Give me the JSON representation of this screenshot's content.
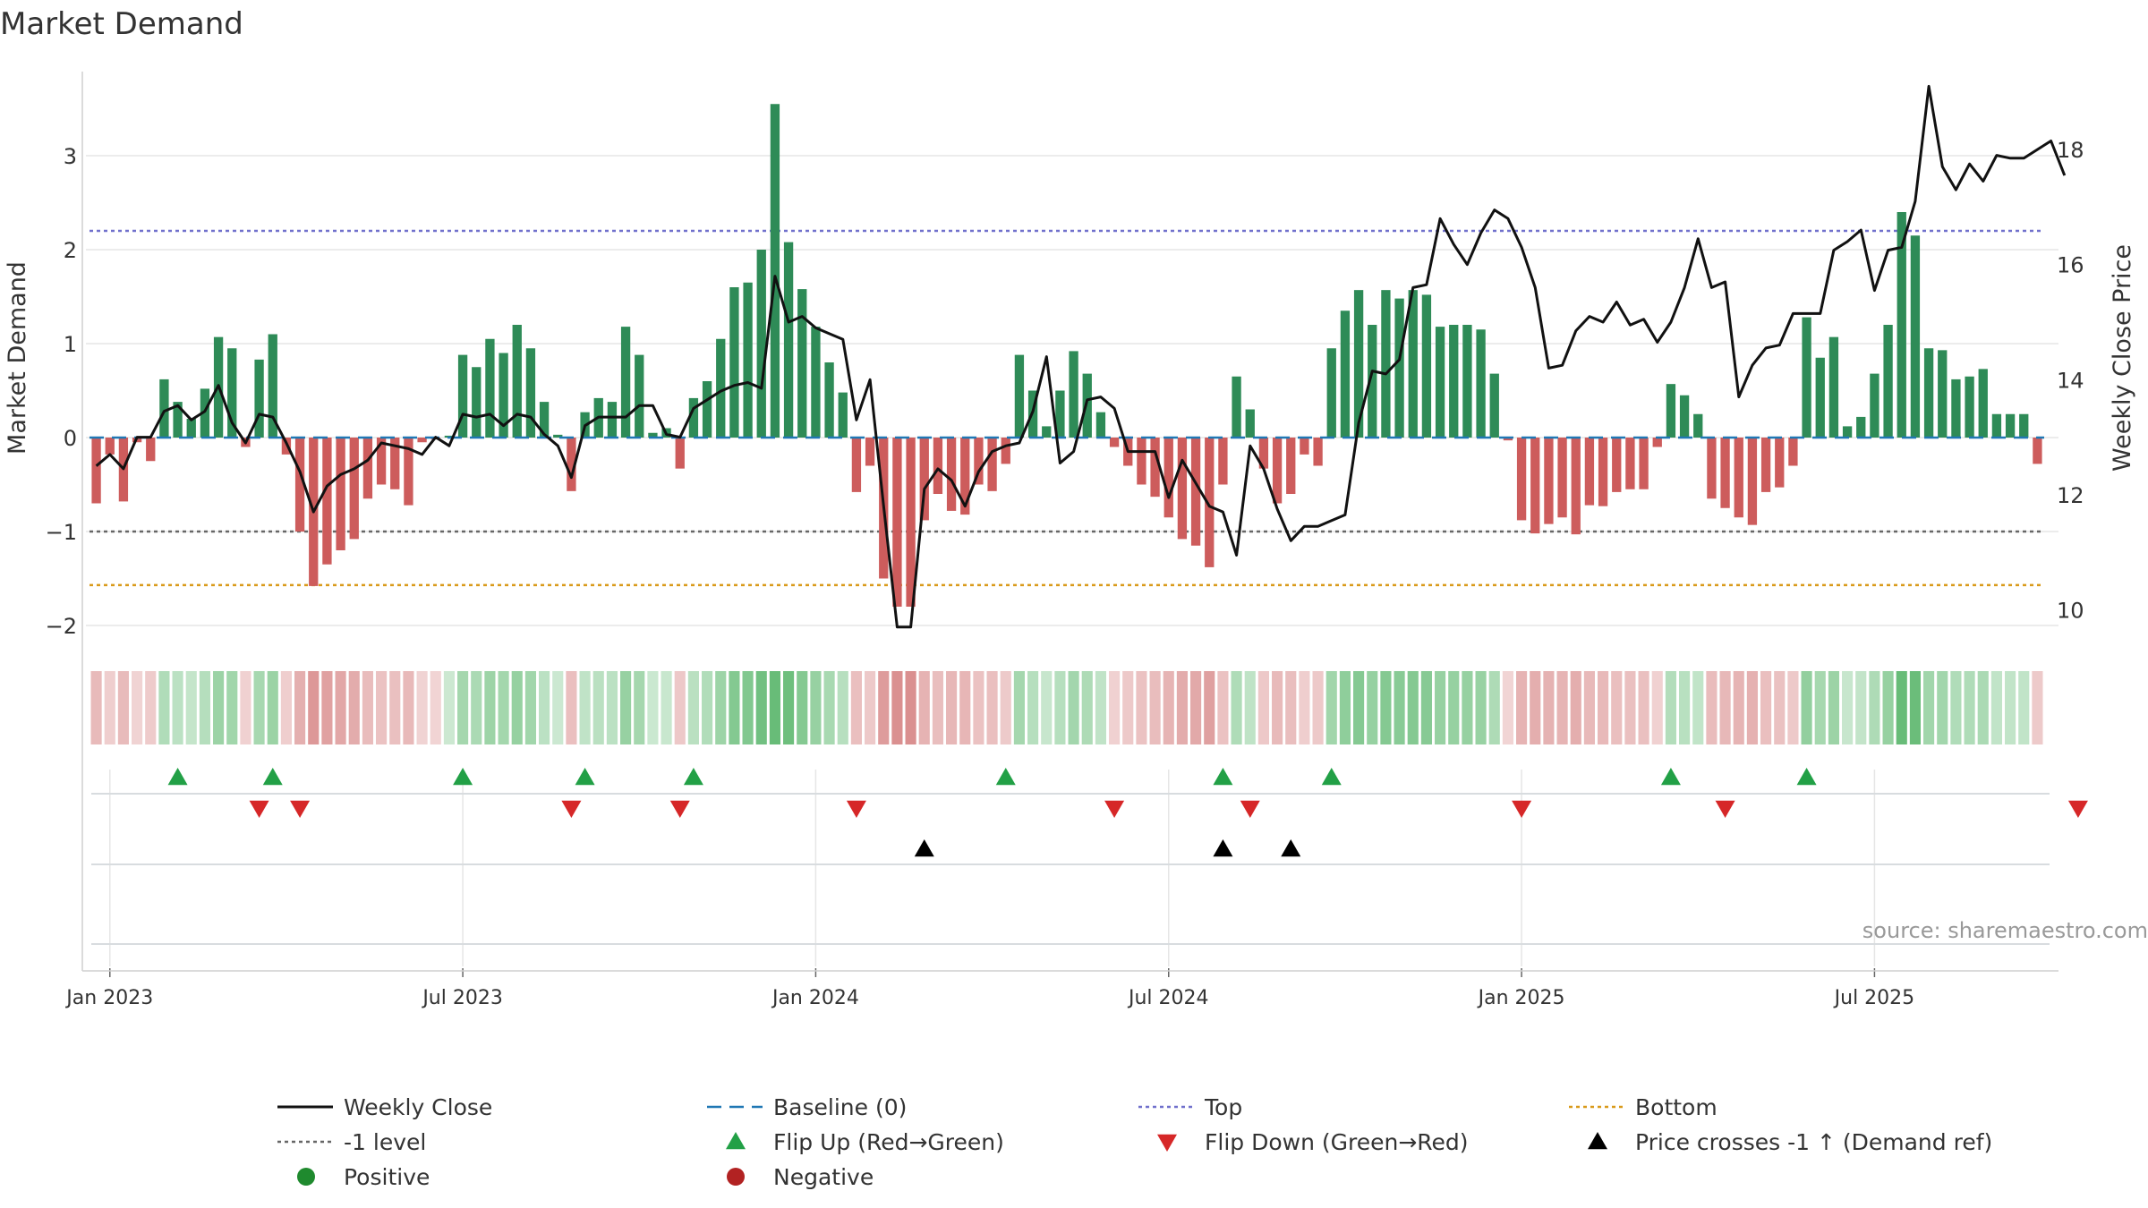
{
  "chart_data": {
    "type": "bar",
    "title": "Market Demand",
    "ylabel_left": "Market Demand",
    "ylabel_right": "Weekly Close Price",
    "source": "source: sharemaestro.com",
    "ylim_left": [
      -2.2,
      3.8
    ],
    "ylim_right": [
      9.4,
      19.2
    ],
    "yticks_left": [
      {
        "v": 3,
        "label": "3"
      },
      {
        "v": 2,
        "label": "2"
      },
      {
        "v": 1,
        "label": "1"
      },
      {
        "v": 0,
        "label": "0"
      },
      {
        "v": -1,
        "label": "−1"
      },
      {
        "v": -2,
        "label": "−2"
      }
    ],
    "yticks_right": [
      {
        "v": 18,
        "label": "18"
      },
      {
        "v": 16,
        "label": "16"
      },
      {
        "v": 14,
        "label": "14"
      },
      {
        "v": 12,
        "label": "12"
      },
      {
        "v": 10,
        "label": "10"
      }
    ],
    "xticks": [
      {
        "week": 1,
        "label": "Jan 2023"
      },
      {
        "week": 27,
        "label": "Jul 2023"
      },
      {
        "week": 53,
        "label": "Jan 2024"
      },
      {
        "week": 79,
        "label": "Jul 2024"
      },
      {
        "week": 105,
        "label": "Jan 2025"
      },
      {
        "week": 131,
        "label": "Jul 2025"
      }
    ],
    "levels": {
      "top": 2.2,
      "minus_one": -1,
      "bottom": -1.57,
      "baseline": 0
    },
    "demand": [
      -0.7,
      -0.18,
      -0.68,
      -0.05,
      -0.25,
      0.62,
      0.38,
      0.2,
      0.52,
      1.07,
      0.95,
      -0.1,
      0.83,
      1.1,
      -0.18,
      -1.0,
      -1.58,
      -1.35,
      -1.2,
      -1.08,
      -0.65,
      -0.5,
      -0.55,
      -0.72,
      -0.05,
      -0.02,
      0.02,
      0.88,
      0.75,
      1.05,
      0.9,
      1.2,
      0.95,
      0.38,
      0.03,
      -0.57,
      0.27,
      0.42,
      0.38,
      1.18,
      0.88,
      0.05,
      0.1,
      -0.33,
      0.42,
      0.6,
      1.05,
      1.6,
      1.65,
      2.0,
      3.55,
      2.08,
      1.58,
      1.18,
      0.8,
      0.48,
      -0.58,
      -0.3,
      -1.5,
      -1.8,
      -1.8,
      -0.88,
      -0.6,
      -0.78,
      -0.82,
      -0.5,
      -0.57,
      -0.28,
      0.88,
      0.5,
      0.12,
      0.5,
      0.92,
      0.68,
      0.27,
      -0.1,
      -0.3,
      -0.5,
      -0.63,
      -0.85,
      -1.08,
      -1.15,
      -1.38,
      -0.5,
      0.65,
      0.3,
      -0.33,
      -0.7,
      -0.6,
      -0.18,
      -0.3,
      0.95,
      1.35,
      1.57,
      1.2,
      1.57,
      1.48,
      1.57,
      1.52,
      1.18,
      1.2,
      1.2,
      1.15,
      0.68,
      -0.03,
      -0.88,
      -1.02,
      -0.92,
      -0.85,
      -1.03,
      -0.72,
      -0.73,
      -0.58,
      -0.55,
      -0.55,
      -0.1,
      0.57,
      0.45,
      0.25,
      -0.65,
      -0.75,
      -0.85,
      -0.93,
      -0.58,
      -0.53,
      -0.3,
      1.28,
      0.85,
      1.07,
      0.12,
      0.22,
      0.68,
      1.2,
      2.4,
      2.15,
      0.95,
      0.93,
      0.62,
      0.65,
      0.73,
      0.25,
      0.25,
      0.25,
      -0.28
    ],
    "close": [
      12.5,
      12.7,
      12.45,
      13.0,
      13.0,
      13.45,
      13.55,
      13.3,
      13.45,
      13.9,
      13.25,
      12.9,
      13.4,
      13.35,
      12.9,
      12.4,
      11.7,
      12.15,
      12.35,
      12.45,
      12.6,
      12.9,
      12.85,
      12.8,
      12.7,
      13.0,
      12.85,
      13.4,
      13.35,
      13.4,
      13.2,
      13.4,
      13.35,
      13.05,
      12.85,
      12.3,
      13.2,
      13.35,
      13.35,
      13.35,
      13.55,
      13.55,
      13.05,
      13.0,
      13.5,
      13.65,
      13.8,
      13.9,
      13.95,
      13.85,
      15.8,
      15.0,
      15.1,
      14.9,
      14.8,
      14.7,
      13.3,
      14.0,
      11.8,
      9.7,
      9.7,
      12.1,
      12.45,
      12.25,
      11.8,
      12.4,
      12.75,
      12.85,
      12.9,
      13.45,
      14.4,
      12.55,
      12.75,
      13.65,
      13.7,
      13.5,
      12.75,
      12.75,
      12.75,
      11.95,
      12.6,
      12.2,
      11.8,
      11.7,
      10.95,
      12.85,
      12.45,
      11.75,
      11.2,
      11.45,
      11.45,
      11.55,
      11.65,
      13.25,
      14.15,
      14.1,
      14.35,
      15.6,
      15.65,
      16.8,
      16.35,
      16.0,
      16.55,
      16.95,
      16.8,
      16.3,
      15.6,
      14.2,
      14.25,
      14.85,
      15.1,
      15.0,
      15.35,
      14.95,
      15.05,
      14.65,
      15.0,
      15.6,
      16.45,
      15.6,
      15.7,
      13.7,
      14.25,
      14.55,
      14.6,
      15.15,
      15.15,
      15.15,
      16.25,
      16.4,
      16.6,
      15.55,
      16.25,
      16.3,
      17.1,
      19.1,
      17.7,
      17.3,
      17.75,
      17.45,
      17.9,
      17.85,
      17.85,
      18.0,
      18.15,
      17.55
    ],
    "flip_up": [
      6,
      13,
      27,
      36,
      44,
      67,
      83,
      91,
      116,
      126
    ],
    "flip_down": [
      12,
      15,
      35,
      43,
      56,
      75,
      85,
      105,
      120,
      146
    ],
    "price_cross": [
      61,
      83,
      88
    ],
    "legend": [
      {
        "key": "weekly_close",
        "label": "Weekly Close"
      },
      {
        "key": "baseline",
        "label": "Baseline (0)"
      },
      {
        "key": "top",
        "label": "Top"
      },
      {
        "key": "bottom",
        "label": "Bottom"
      },
      {
        "key": "minus_one",
        "label": "-1 level"
      },
      {
        "key": "flip_up",
        "label": "Flip Up (Red→Green)"
      },
      {
        "key": "flip_down",
        "label": "Flip Down (Green→Red)"
      },
      {
        "key": "price_cross",
        "label": "Price crosses -1 ↑ (Demand ref)"
      },
      {
        "key": "positive",
        "label": "Positive"
      },
      {
        "key": "negative",
        "label": "Negative"
      }
    ],
    "colors": {
      "positive": "#2e8b57",
      "negative": "#cd5c5c",
      "close": "#111111",
      "baseline": "#1f77b4",
      "top": "#7070cc",
      "minus_one": "#666666",
      "bottom": "#d99a1a",
      "flip_up": "#22a046",
      "flip_down": "#d62728",
      "price_cross": "#000000",
      "positive_dot": "#1f8a2e",
      "negative_dot": "#b22222",
      "grid": "#e6e6e6",
      "source": "#999999"
    }
  }
}
